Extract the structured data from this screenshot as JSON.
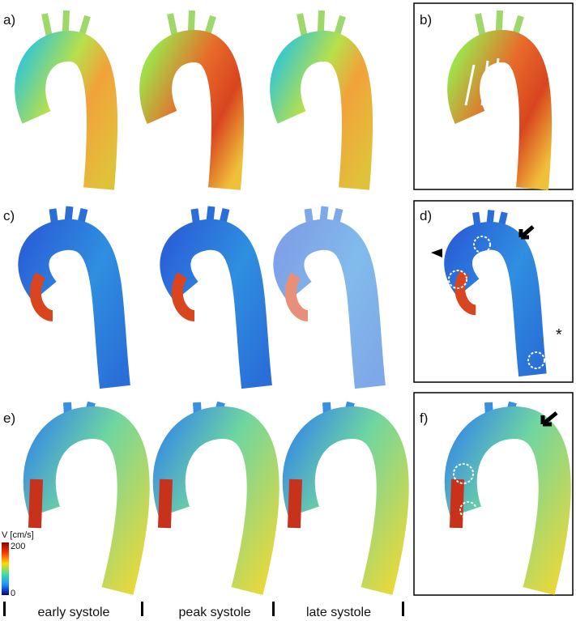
{
  "panels": {
    "a": "a)",
    "b": "b)",
    "c": "c)",
    "d": "d)",
    "e": "e)",
    "f": "f)"
  },
  "colorbar": {
    "label": "V [cm/s]",
    "max": "200",
    "min": "0"
  },
  "columns": [
    "early systole",
    "peak systole",
    "late systole"
  ],
  "annotations": {
    "asterisk": "*"
  }
}
